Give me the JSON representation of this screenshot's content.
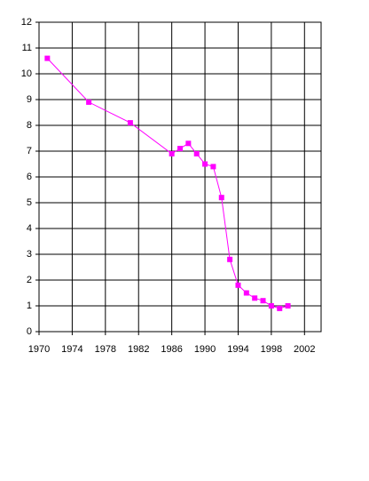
{
  "chart_data": {
    "type": "line",
    "x": [
      1971,
      1976,
      1981,
      1986,
      1987,
      1988,
      1989,
      1990,
      1991,
      1992,
      1993,
      1994,
      1995,
      1996,
      1997,
      1998,
      1999,
      2000
    ],
    "series": [
      {
        "color": "#ff00ff",
        "values": [
          10.6,
          8.9,
          8.1,
          6.9,
          7.1,
          7.3,
          6.9,
          6.5,
          6.4,
          5.2,
          2.8,
          1.8,
          1.5,
          1.3,
          1.2,
          1.0,
          0.9,
          1.0
        ]
      }
    ],
    "xlim": [
      1970,
      2004
    ],
    "xticks": [
      1970,
      1974,
      1978,
      1982,
      1986,
      1990,
      1994,
      1998,
      2002
    ],
    "ylim": [
      0,
      12
    ],
    "yticks": [
      0,
      1,
      2,
      3,
      4,
      5,
      6,
      7,
      8,
      9,
      10,
      11,
      12
    ],
    "grid": true
  }
}
